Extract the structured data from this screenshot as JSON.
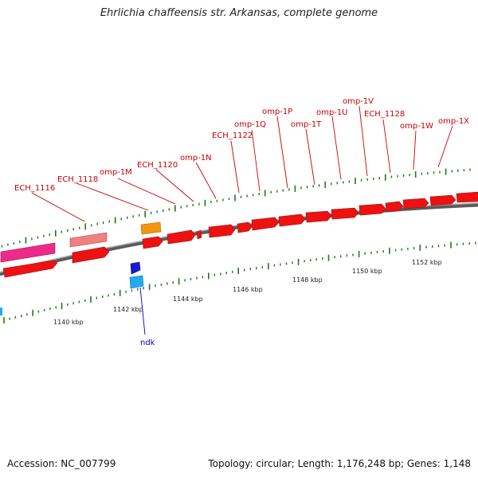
{
  "title": "Ehrlichia chaffeensis str. Arkansas, complete genome",
  "footer": {
    "accession": "Accession: NC_007799",
    "topology": "Topology: circular; Length: 1,176,248 bp; Genes: 1,148"
  },
  "colors": {
    "gene_red": "#ee1111",
    "gene_pink": "#ee2a88",
    "gene_salmon": "#ee8080",
    "gene_orange": "#f5950f",
    "gene_blue": "#1a1ad6",
    "gene_cyan": "#22aaee",
    "label_red": "#cc0000",
    "label_blue": "#0000cc",
    "tick_green": "#1a7a1a",
    "backbone": "#888888"
  },
  "scale": {
    "ticks": [
      {
        "label": "1140 kbp"
      },
      {
        "label": "1142 kbp"
      },
      {
        "label": "1144 kbp"
      },
      {
        "label": "1146 kbp"
      },
      {
        "label": "1148 kbp"
      },
      {
        "label": "1150 kbp"
      },
      {
        "label": "1152 kbp"
      }
    ]
  },
  "labels": [
    {
      "text": "ECH_1116"
    },
    {
      "text": "ECH_1118"
    },
    {
      "text": "omp-1M"
    },
    {
      "text": "ECH_1120"
    },
    {
      "text": "omp-1N"
    },
    {
      "text": "ECH_1122"
    },
    {
      "text": "omp-1Q"
    },
    {
      "text": "omp-1P"
    },
    {
      "text": "omp-1T"
    },
    {
      "text": "omp-1U"
    },
    {
      "text": "omp-1V"
    },
    {
      "text": "ECH_1128"
    },
    {
      "text": "omp-1W"
    },
    {
      "text": "omp-1X"
    },
    {
      "text": "ndk"
    }
  ]
}
